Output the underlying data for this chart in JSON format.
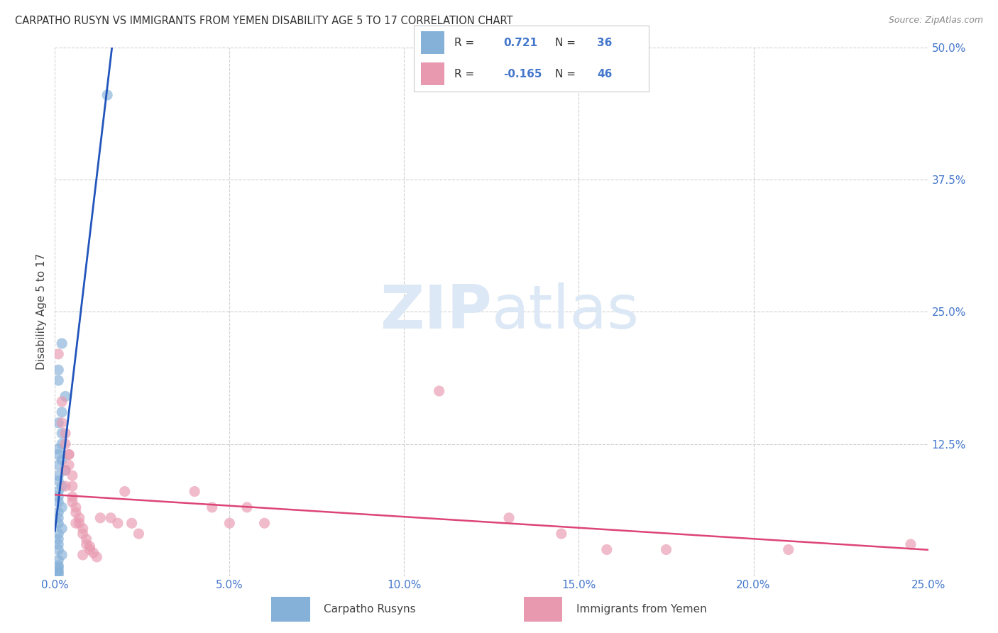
{
  "title": "CARPATHO RUSYN VS IMMIGRANTS FROM YEMEN DISABILITY AGE 5 TO 17 CORRELATION CHART",
  "source": "Source: ZipAtlas.com",
  "ylabel": "Disability Age 5 to 17",
  "xlim": [
    0.0,
    0.25
  ],
  "ylim": [
    0.0,
    0.5
  ],
  "xticks": [
    0.0,
    0.05,
    0.1,
    0.15,
    0.2,
    0.25
  ],
  "yticks": [
    0.0,
    0.125,
    0.25,
    0.375,
    0.5
  ],
  "xtick_labels": [
    "0.0%",
    "5.0%",
    "10.0%",
    "15.0%",
    "20.0%",
    "25.0%"
  ],
  "ytick_labels": [
    "",
    "12.5%",
    "25.0%",
    "37.5%",
    "50.0%"
  ],
  "r_blue": 0.721,
  "n_blue": 36,
  "r_pink": -0.165,
  "n_pink": 46,
  "blue_x": [
    0.015,
    0.002,
    0.001,
    0.001,
    0.003,
    0.002,
    0.001,
    0.002,
    0.002,
    0.001,
    0.001,
    0.002,
    0.001,
    0.003,
    0.001,
    0.001,
    0.002,
    0.001,
    0.001,
    0.001,
    0.002,
    0.001,
    0.001,
    0.001,
    0.002,
    0.001,
    0.001,
    0.001,
    0.001,
    0.002,
    0.001,
    0.001,
    0.001,
    0.001,
    0.001,
    0.001
  ],
  "blue_y": [
    0.455,
    0.22,
    0.195,
    0.185,
    0.17,
    0.155,
    0.145,
    0.135,
    0.125,
    0.12,
    0.115,
    0.11,
    0.105,
    0.1,
    0.095,
    0.09,
    0.085,
    0.08,
    0.075,
    0.07,
    0.065,
    0.06,
    0.055,
    0.05,
    0.045,
    0.04,
    0.035,
    0.03,
    0.025,
    0.02,
    0.015,
    0.01,
    0.008,
    0.005,
    0.003,
    0.001
  ],
  "pink_x": [
    0.001,
    0.002,
    0.002,
    0.003,
    0.003,
    0.004,
    0.004,
    0.005,
    0.005,
    0.005,
    0.006,
    0.006,
    0.007,
    0.008,
    0.009,
    0.01,
    0.008,
    0.004,
    0.003,
    0.003,
    0.005,
    0.006,
    0.007,
    0.008,
    0.009,
    0.01,
    0.011,
    0.012,
    0.013,
    0.016,
    0.018,
    0.02,
    0.022,
    0.024,
    0.04,
    0.045,
    0.05,
    0.055,
    0.06,
    0.11,
    0.13,
    0.145,
    0.158,
    0.175,
    0.21,
    0.245
  ],
  "pink_y": [
    0.21,
    0.165,
    0.145,
    0.135,
    0.125,
    0.115,
    0.105,
    0.095,
    0.085,
    0.07,
    0.06,
    0.05,
    0.05,
    0.04,
    0.03,
    0.025,
    0.02,
    0.115,
    0.1,
    0.085,
    0.075,
    0.065,
    0.055,
    0.045,
    0.035,
    0.028,
    0.022,
    0.018,
    0.055,
    0.055,
    0.05,
    0.08,
    0.05,
    0.04,
    0.08,
    0.065,
    0.05,
    0.065,
    0.05,
    0.175,
    0.055,
    0.04,
    0.025,
    0.025,
    0.025,
    0.03
  ],
  "blue_line_color": "#2255bb",
  "pink_line_color": "#dd4477",
  "blue_dot_color": "#85b0d8",
  "pink_dot_color": "#e899b0",
  "background_color": "#ffffff",
  "grid_color": "#d0d0d0",
  "title_color": "#333333",
  "axis_color": "#4477cc",
  "watermark_color": "#dce8f5"
}
